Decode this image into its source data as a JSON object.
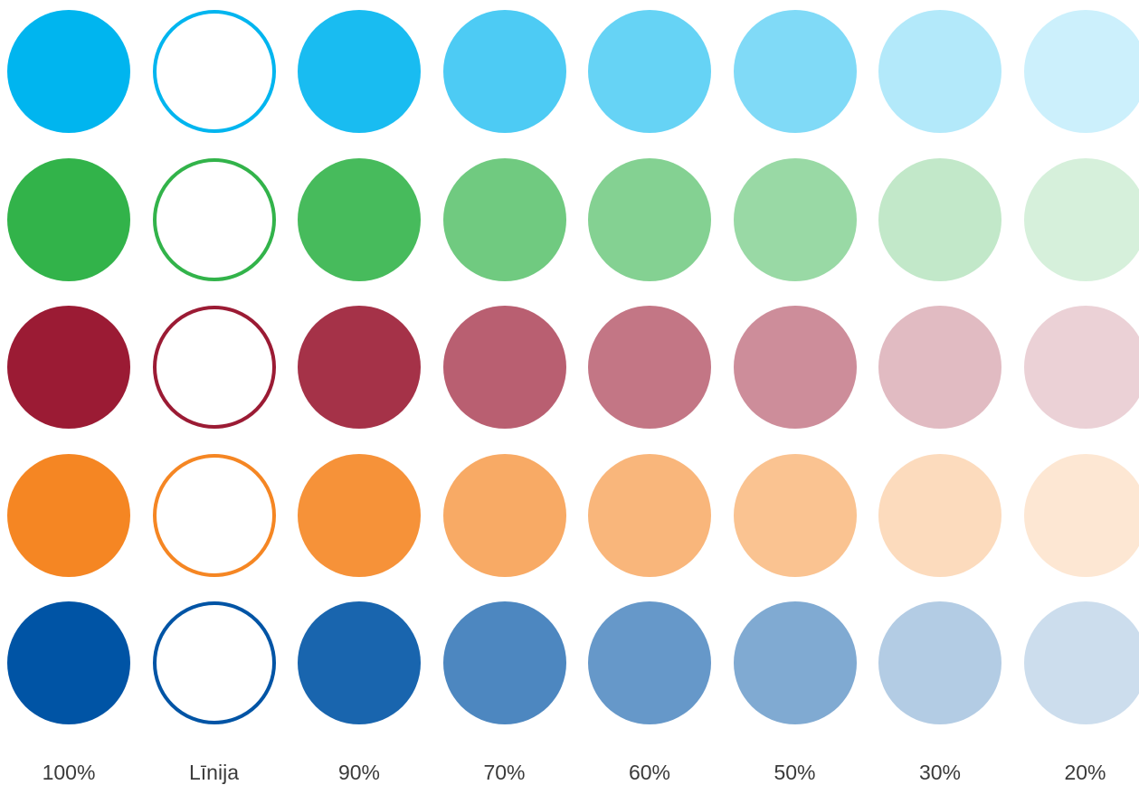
{
  "columns": [
    {
      "label": "100%",
      "opacity": 1.0,
      "style": "fill"
    },
    {
      "label": "Līnija",
      "opacity": 1.0,
      "style": "outline"
    },
    {
      "label": "90%",
      "opacity": 0.9,
      "style": "fill"
    },
    {
      "label": "70%",
      "opacity": 0.7,
      "style": "fill"
    },
    {
      "label": "60%",
      "opacity": 0.6,
      "style": "fill"
    },
    {
      "label": "50%",
      "opacity": 0.5,
      "style": "fill"
    },
    {
      "label": "30%",
      "opacity": 0.3,
      "style": "fill"
    },
    {
      "label": "20%",
      "opacity": 0.2,
      "style": "fill"
    }
  ],
  "rows": [
    {
      "color": "#00b5ef"
    },
    {
      "color": "#32b34a"
    },
    {
      "color": "#9b1b34"
    },
    {
      "color": "#f58623"
    },
    {
      "color": "#0054a5"
    }
  ]
}
